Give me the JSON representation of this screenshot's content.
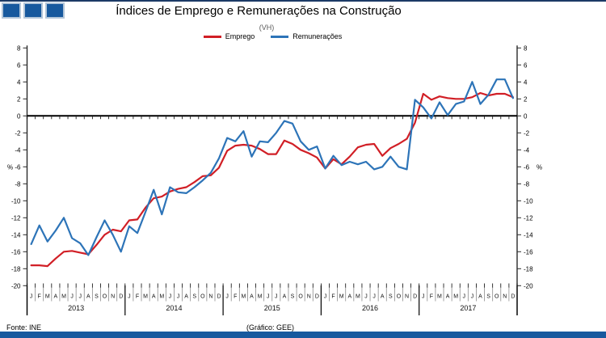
{
  "header": {
    "title": "Índices de Emprego e Remunerações na Construção",
    "subtitle": "(VH)"
  },
  "footer": {
    "source": "Fonte: INE",
    "credit": "(Gráfico: GEE)"
  },
  "decor": {
    "square_color": "#17599e",
    "square_count": 3,
    "bottom_bar_color": "#17599e",
    "top_line_color": "#1b3a66"
  },
  "chart_data": {
    "type": "line",
    "title": "Índices de Emprego e Remunerações na Construção",
    "subtitle": "(VH)",
    "ylabel_left": "%",
    "ylabel_right": "%",
    "ylim": [
      -20,
      8
    ],
    "ytick_step": 2,
    "grid": false,
    "legend_position": "top-center",
    "x_unit": "month",
    "month_letters": [
      "J",
      "F",
      "M",
      "A",
      "M",
      "J",
      "J",
      "A",
      "S",
      "O",
      "N",
      "D"
    ],
    "years": [
      "2013",
      "2014",
      "2015",
      "2016",
      "2017"
    ],
    "series": [
      {
        "name": "Emprego",
        "color": "#d11f26",
        "values": [
          -17.6,
          -17.6,
          -17.7,
          -16.8,
          -16.0,
          -15.9,
          -16.1,
          -16.3,
          -15.2,
          -14.0,
          -13.4,
          -13.6,
          -12.3,
          -12.2,
          -10.8,
          -9.7,
          -9.5,
          -8.9,
          -8.6,
          -8.4,
          -7.8,
          -7.1,
          -7.0,
          -6.1,
          -4.1,
          -3.5,
          -3.4,
          -3.5,
          -3.9,
          -4.5,
          -4.5,
          -2.9,
          -3.3,
          -4.0,
          -4.4,
          -4.9,
          -6.2,
          -5.1,
          -5.7,
          -4.8,
          -3.7,
          -3.4,
          -3.3,
          -4.7,
          -3.8,
          -3.3,
          -2.7,
          -0.8,
          2.6,
          1.9,
          2.3,
          2.1,
          2.0,
          2.0,
          2.2,
          2.7,
          2.4,
          2.6,
          2.6,
          2.2
        ]
      },
      {
        "name": "Remunerações",
        "color": "#2d74b8",
        "values": [
          -15.1,
          -12.9,
          -14.8,
          -13.5,
          -12.0,
          -14.4,
          -15.0,
          -16.4,
          -14.3,
          -12.3,
          -14.0,
          -16.0,
          -13.0,
          -13.8,
          -11.3,
          -8.7,
          -11.6,
          -8.4,
          -9.0,
          -9.1,
          -8.4,
          -7.6,
          -6.7,
          -5.0,
          -2.6,
          -3.0,
          -1.8,
          -4.8,
          -3.0,
          -3.1,
          -2.0,
          -0.6,
          -0.9,
          -3.0,
          -4.0,
          -3.6,
          -6.2,
          -4.7,
          -5.8,
          -5.4,
          -5.7,
          -5.4,
          -6.3,
          -6.0,
          -4.8,
          -6.0,
          -6.3,
          1.9,
          1.0,
          -0.3,
          1.6,
          0.1,
          1.4,
          1.7,
          4.0,
          1.4,
          2.5,
          4.3,
          4.3,
          2.1
        ]
      }
    ]
  }
}
